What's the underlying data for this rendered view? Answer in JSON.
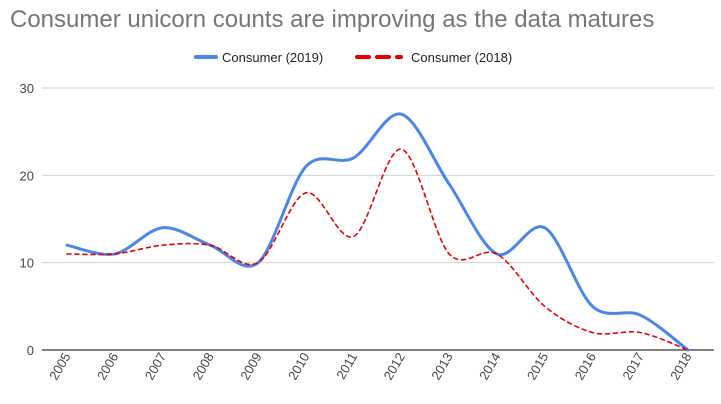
{
  "chart_data": {
    "type": "line",
    "title": "Consumer unicorn counts are improving as the data matures",
    "xlabel": "",
    "ylabel": "",
    "categories": [
      "2005",
      "2006",
      "2007",
      "2008",
      "2009",
      "2010",
      "2011",
      "2012",
      "2013",
      "2014",
      "2015",
      "2016",
      "2017",
      "2018"
    ],
    "ylim": [
      0,
      30
    ],
    "yticks": [
      0,
      10,
      20,
      30
    ],
    "grid": true,
    "legend_position": "top-center",
    "series": [
      {
        "name": "Consumer (2019)",
        "color": "#4a86e8",
        "style": "solid",
        "values": [
          12,
          11,
          14,
          12,
          10,
          21,
          22,
          27,
          19,
          11,
          14,
          5,
          4,
          0
        ]
      },
      {
        "name": "Consumer (2018)",
        "color": "#e60000",
        "style": "dashed",
        "values": [
          11,
          11,
          12,
          12,
          10,
          18,
          13,
          23,
          11,
          11,
          5,
          2,
          2,
          0
        ]
      }
    ]
  }
}
